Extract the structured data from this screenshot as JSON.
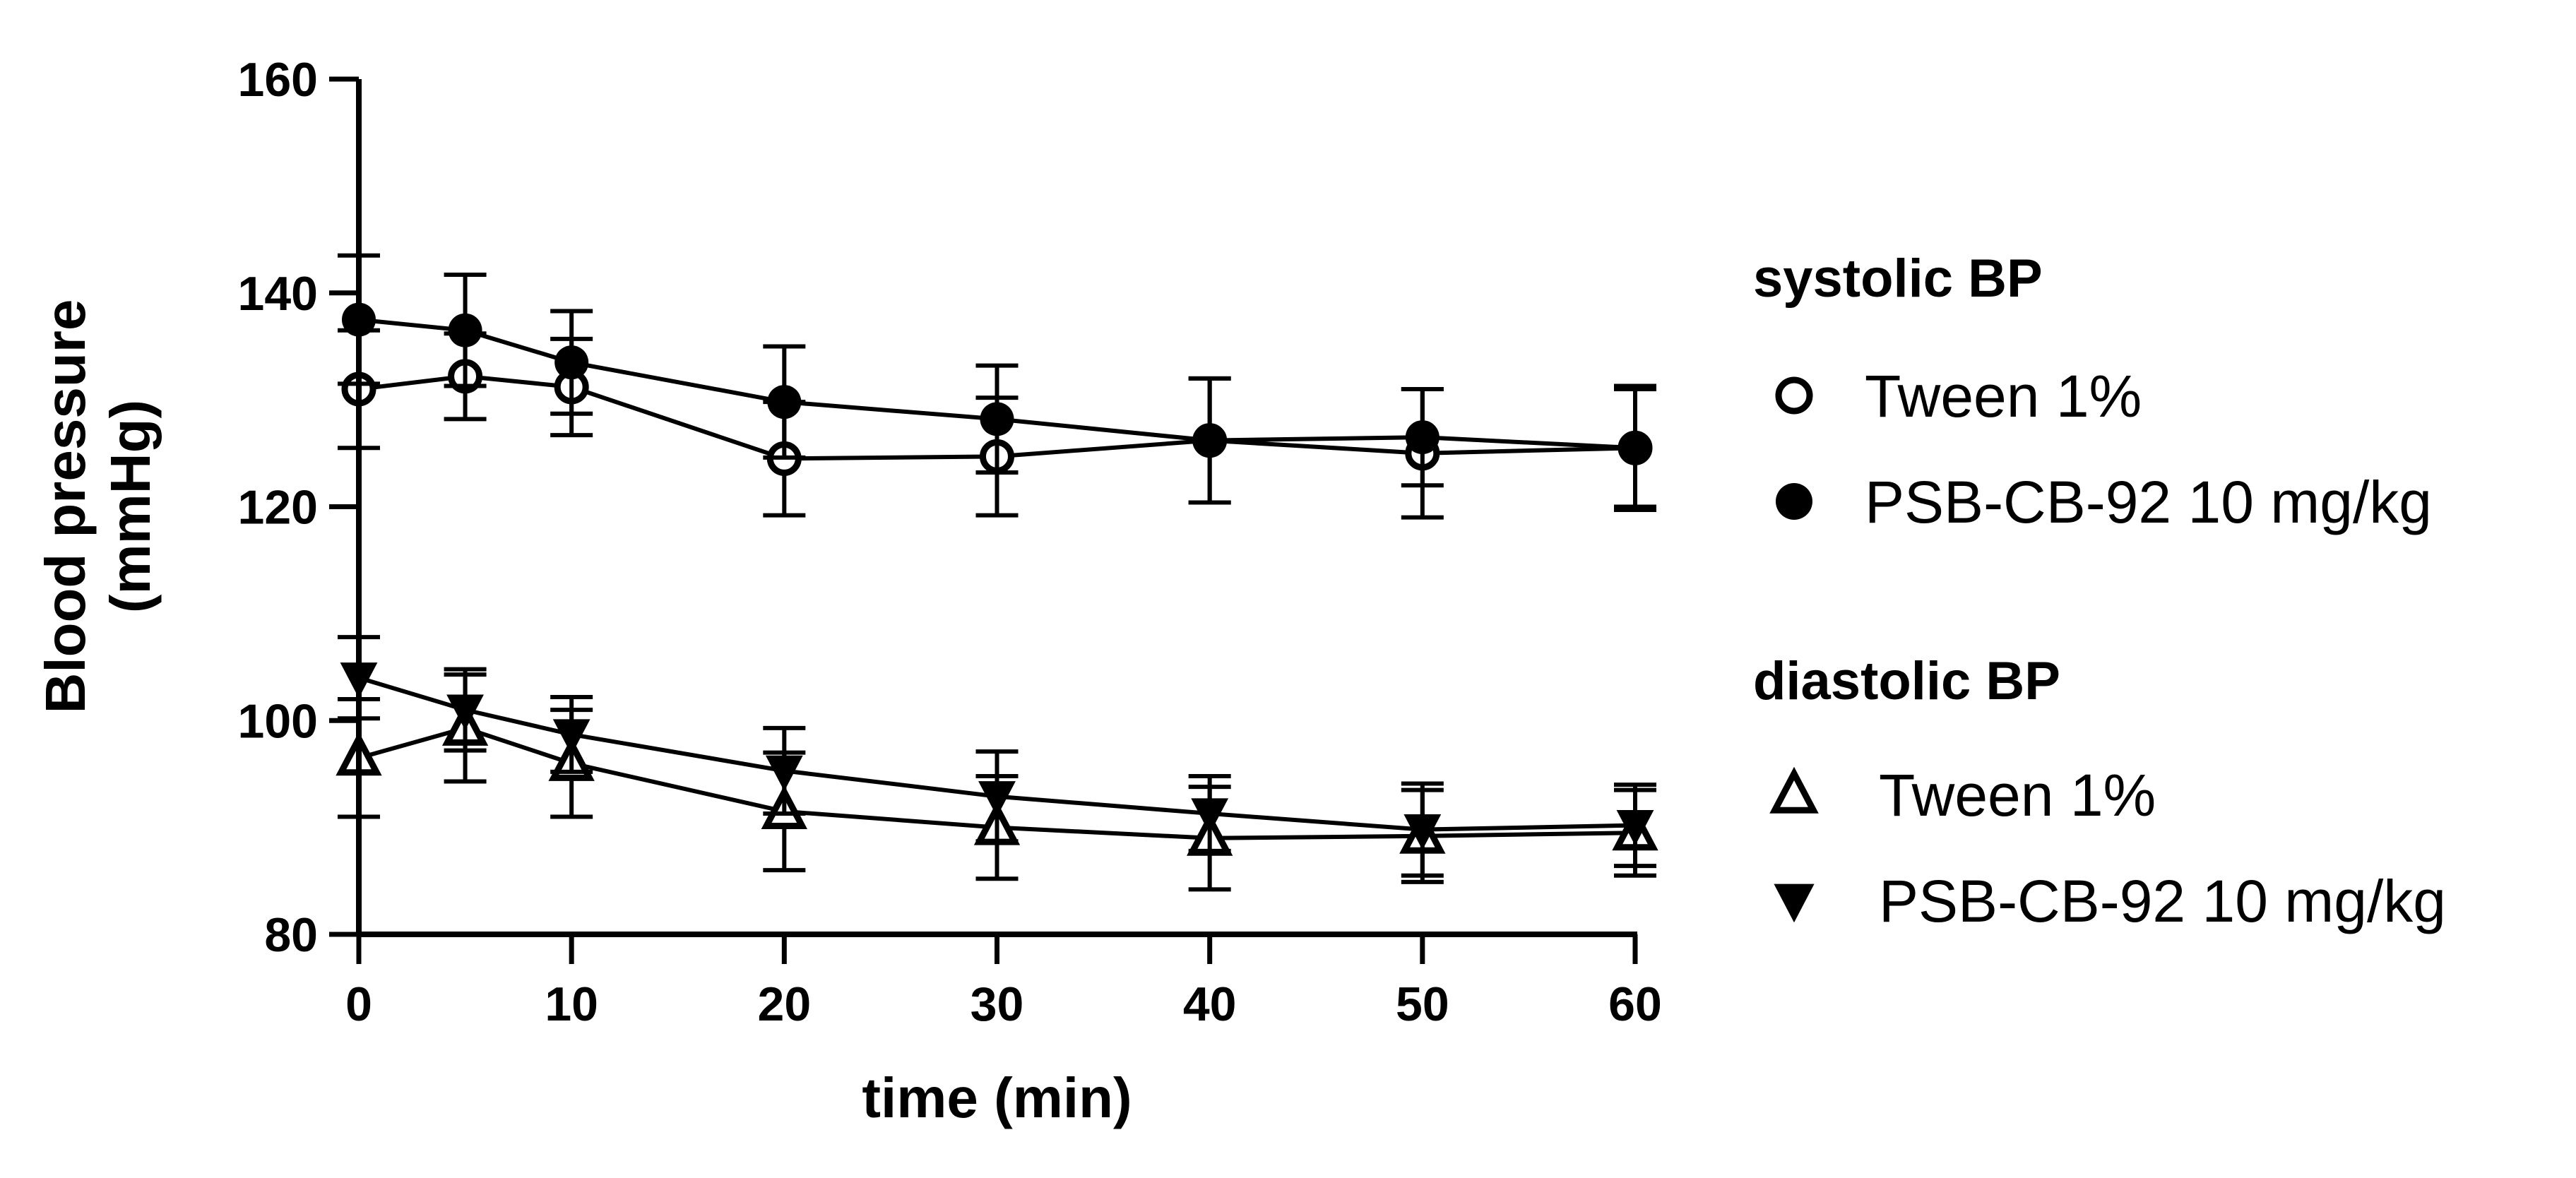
{
  "chart_data": {
    "type": "line",
    "title": "",
    "xlabel": "time (min)",
    "ylabel_lines": [
      "Blood pressure",
      "(mmHg)"
    ],
    "xlim": [
      0,
      60
    ],
    "ylim": [
      80,
      160
    ],
    "x_ticks": [
      0,
      10,
      20,
      30,
      40,
      50,
      60
    ],
    "y_ticks": [
      80,
      100,
      120,
      140,
      160
    ],
    "x_tick_labels": [
      "0",
      "10",
      "20",
      "30",
      "40",
      "50",
      "60"
    ],
    "y_tick_labels": [
      "80",
      "100",
      "120",
      "140",
      "160"
    ],
    "grid": false,
    "legend_position": "right",
    "x": [
      0,
      5,
      10,
      20,
      30,
      40,
      50,
      60
    ],
    "legend_groups": [
      {
        "heading": "systolic BP",
        "series_names": [
          "Tween 1%",
          "PSB-CB-92 10 mg/kg"
        ]
      },
      {
        "heading": "diastolic BP",
        "series_names": [
          "Tween 1%",
          "PSB-CB-92 10 mg/kg"
        ]
      }
    ],
    "series": [
      {
        "name": "Tween 1%",
        "group": "systolic BP",
        "marker": "open-circle",
        "values": [
          131,
          132.2,
          131.2,
          124.5,
          124.7,
          126.2,
          125,
          125.5
        ],
        "error": [
          5.5,
          4,
          4.5,
          5.3,
          5.5,
          5.8,
          6,
          5.5
        ]
      },
      {
        "name": "PSB-CB-92 10 mg/kg",
        "group": "systolic BP",
        "marker": "filled-circle",
        "values": [
          137.5,
          136.5,
          133.5,
          129.8,
          128.2,
          126.2,
          126.5,
          125.5
        ],
        "error": [
          6,
          5.2,
          4.8,
          5.2,
          5,
          5.8,
          4.5,
          5.8
        ]
      },
      {
        "name": "Tween 1%",
        "group": "diastolic BP",
        "marker": "open-triangle-up",
        "values": [
          96.5,
          99.3,
          96,
          91.5,
          90,
          89,
          89.2,
          89.5
        ],
        "error": [
          5.5,
          5,
          5,
          5.5,
          4.8,
          4.8,
          4.3,
          4
        ]
      },
      {
        "name": "PSB-CB-92 10 mg/kg",
        "group": "diastolic BP",
        "marker": "filled-triangle-down",
        "values": [
          104,
          101,
          98.7,
          95.3,
          92.9,
          91.3,
          89.8,
          90.2
        ],
        "error": [
          3.8,
          3.8,
          3.5,
          4,
          4.2,
          3.5,
          4.3,
          3.8
        ]
      }
    ]
  }
}
